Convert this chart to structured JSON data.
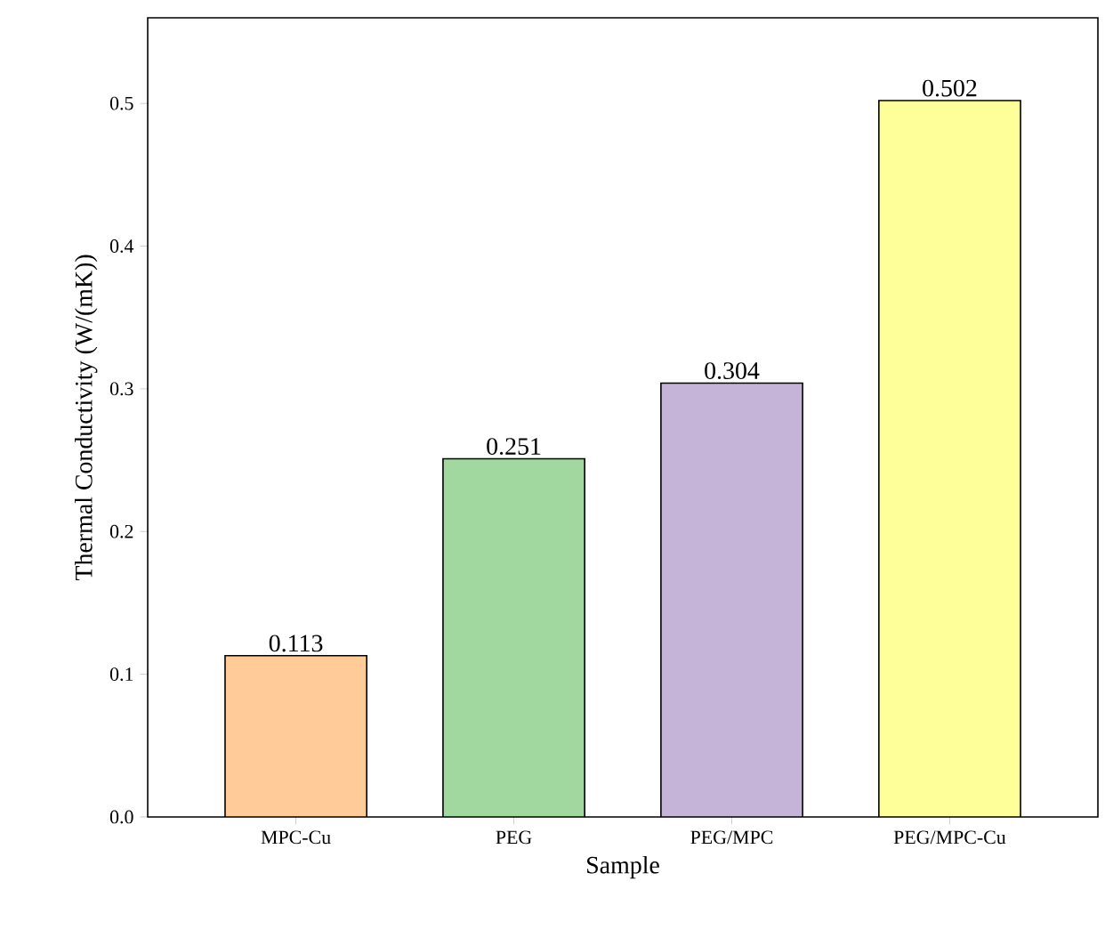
{
  "chart_data": {
    "type": "bar",
    "xlabel": "Sample",
    "ylabel": "Thermal Conductivity (W/(mK))",
    "categories": [
      "MPC-Cu",
      "PEG",
      "PEG/MPC",
      "PEG/MPC-Cu"
    ],
    "values": [
      0.113,
      0.251,
      0.304,
      0.502
    ],
    "colors": [
      "#ffcc99",
      "#a0d8a0",
      "#c6b4d8",
      "#ffff99"
    ],
    "ylim": [
      0,
      0.56
    ],
    "yticks": [
      {
        "value": 0,
        "label": "0.0"
      },
      0.1,
      0.2,
      0.3,
      0.4,
      0.5
    ],
    "data_labels": true
  }
}
